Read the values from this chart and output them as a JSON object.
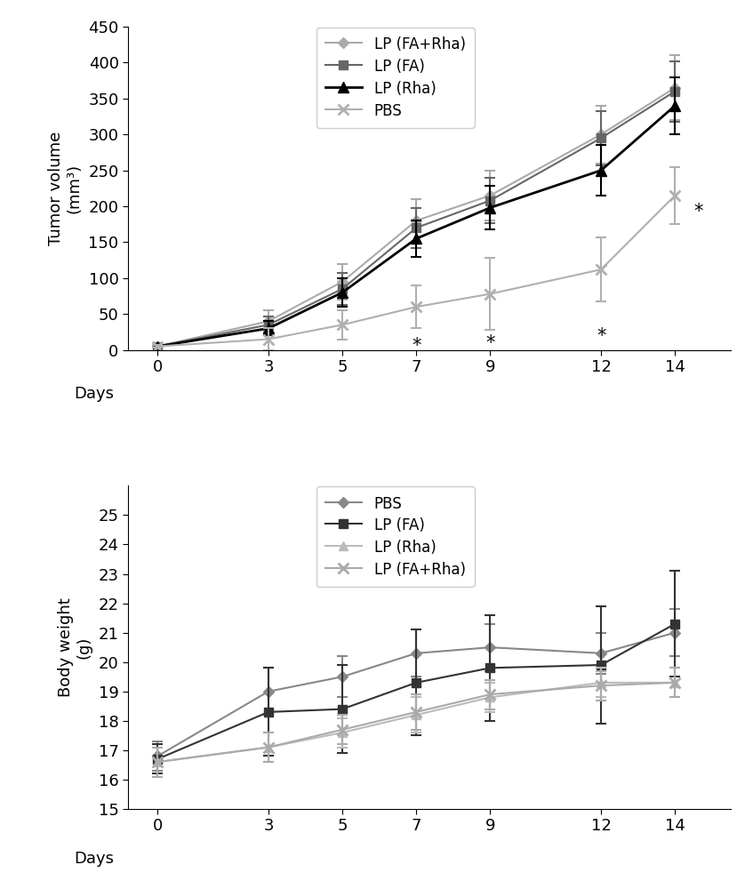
{
  "days": [
    0,
    3,
    5,
    7,
    9,
    12,
    14
  ],
  "tumor_FA_Rha": [
    5,
    40,
    95,
    180,
    215,
    300,
    365
  ],
  "tumor_FA_Rha_err": [
    2,
    15,
    25,
    30,
    35,
    40,
    45
  ],
  "tumor_FA": [
    5,
    35,
    85,
    170,
    208,
    295,
    360
  ],
  "tumor_FA_err": [
    2,
    12,
    22,
    28,
    32,
    38,
    42
  ],
  "tumor_Rha": [
    5,
    30,
    80,
    155,
    198,
    250,
    340
  ],
  "tumor_Rha_err": [
    2,
    10,
    20,
    25,
    30,
    35,
    40
  ],
  "tumor_PBS": [
    5,
    15,
    35,
    60,
    78,
    112,
    215
  ],
  "tumor_PBS_err": [
    2,
    15,
    20,
    30,
    50,
    45,
    40
  ],
  "bw_PBS": [
    16.8,
    19.0,
    19.5,
    20.3,
    20.5,
    20.3,
    21.0
  ],
  "bw_PBS_err": [
    0.5,
    0.8,
    0.7,
    0.8,
    0.8,
    0.7,
    0.8
  ],
  "bw_FA": [
    16.7,
    18.3,
    18.4,
    19.3,
    19.8,
    19.9,
    21.3
  ],
  "bw_FA_err": [
    0.5,
    1.5,
    1.5,
    1.8,
    1.8,
    2.0,
    1.8
  ],
  "bw_Rha": [
    16.6,
    17.1,
    17.6,
    18.2,
    18.8,
    19.3,
    19.3
  ],
  "bw_Rha_err": [
    0.5,
    0.5,
    0.5,
    0.6,
    0.5,
    0.5,
    0.5
  ],
  "bw_FA_Rha": [
    16.6,
    17.1,
    17.7,
    18.3,
    18.9,
    19.2,
    19.3
  ],
  "bw_FA_Rha_err": [
    0.5,
    0.5,
    0.5,
    0.6,
    0.5,
    0.5,
    0.5
  ],
  "ylim_tumor": [
    0,
    450
  ],
  "yticks_tumor": [
    0,
    50,
    100,
    150,
    200,
    250,
    300,
    350,
    400,
    450
  ],
  "ylim_bw": [
    15,
    26
  ],
  "yticks_bw": [
    15,
    16,
    17,
    18,
    19,
    20,
    21,
    22,
    23,
    24,
    25
  ],
  "ylabel_tumor": "Tumor volume\n(mm³)",
  "ylabel_bw": "Body weight\n(g)",
  "days_label": "Days"
}
